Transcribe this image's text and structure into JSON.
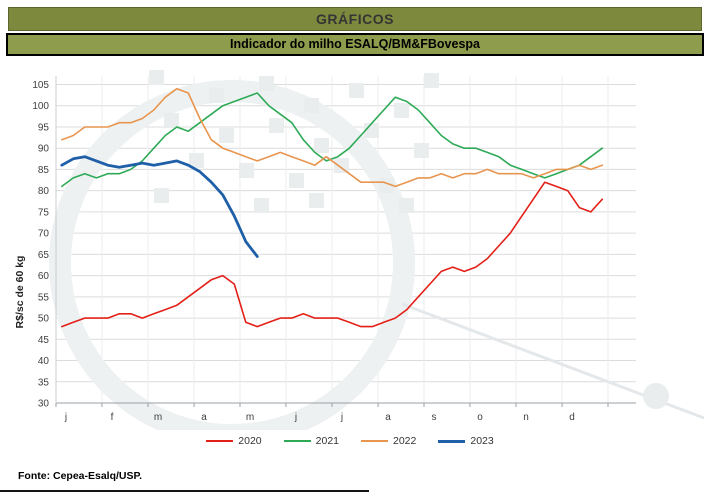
{
  "header": {
    "title": "GRÁFICOS"
  },
  "subheader": {
    "title": "Indicador do milho ESALQ/BM&FBovespa"
  },
  "footer": {
    "source": "Fonte: Cepea-Esalq/USP."
  },
  "chart_data": {
    "type": "line",
    "title": "Indicador do milho ESALQ/BM&FBovespa",
    "xlabel": "",
    "ylabel": "R$/sc de 60 kg",
    "ylim": [
      30,
      107
    ],
    "yticks": [
      30,
      35,
      40,
      45,
      50,
      55,
      60,
      65,
      70,
      75,
      80,
      85,
      90,
      95,
      100,
      105
    ],
    "x_tick_labels": [
      "j",
      "f",
      "m",
      "a",
      "m",
      "j",
      "j",
      "a",
      "s",
      "o",
      "n",
      "d"
    ],
    "points_per_month": 4,
    "grid": "horizontal-light",
    "legend_position": "bottom",
    "series": [
      {
        "name": "2020",
        "color": "#e32017",
        "values": [
          48,
          49,
          50,
          50,
          50,
          51,
          51,
          50,
          51,
          52,
          53,
          55,
          57,
          59,
          60,
          58,
          49,
          48,
          49,
          50,
          50,
          51,
          50,
          50,
          50,
          49,
          48,
          48,
          49,
          50,
          52,
          55,
          58,
          61,
          62,
          61,
          62,
          64,
          67,
          70,
          74,
          78,
          82,
          81,
          80,
          76,
          75,
          78
        ]
      },
      {
        "name": "2021",
        "color": "#2eaa57",
        "values": [
          81,
          83,
          84,
          83,
          84,
          84,
          85,
          87,
          90,
          93,
          95,
          94,
          96,
          98,
          100,
          101,
          102,
          103,
          100,
          98,
          96,
          92,
          89,
          87,
          88,
          90,
          93,
          96,
          99,
          102,
          101,
          99,
          96,
          93,
          91,
          90,
          90,
          89,
          88,
          86,
          85,
          84,
          83,
          84,
          85,
          86,
          88,
          90
        ]
      },
      {
        "name": "2022",
        "color": "#e8954f",
        "values": [
          92,
          93,
          95,
          95,
          95,
          96,
          96,
          97,
          99,
          102,
          104,
          103,
          97,
          92,
          90,
          89,
          88,
          87,
          88,
          89,
          88,
          87,
          86,
          88,
          86,
          84,
          82,
          82,
          82,
          81,
          82,
          83,
          83,
          84,
          83,
          84,
          84,
          85,
          84,
          84,
          84,
          83,
          84,
          85,
          85,
          86,
          85,
          86
        ]
      },
      {
        "name": "2023",
        "color": "#1e5fa8",
        "width": 2.8,
        "values": [
          86,
          87.5,
          88,
          87,
          86,
          85.5,
          86,
          86.5,
          86,
          86.5,
          87,
          86,
          84.5,
          82,
          79,
          74,
          68,
          64.5,
          null,
          null,
          null,
          null,
          null,
          null,
          null,
          null,
          null,
          null,
          null,
          null,
          null,
          null,
          null,
          null,
          null,
          null,
          null,
          null,
          null,
          null,
          null,
          null,
          null,
          null,
          null,
          null,
          null,
          null
        ]
      }
    ]
  }
}
